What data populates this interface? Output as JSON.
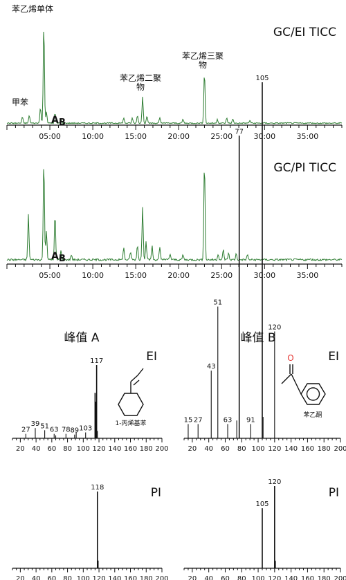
{
  "chromatograms": {
    "time_ticks": [
      "05:00",
      "10:00",
      "15:00",
      "20:00",
      "25:00",
      "30:00",
      "35:00"
    ],
    "peak_labels": {
      "A": "A",
      "B": "B",
      "toluene": "甲苯",
      "monomer": "苯乙烯单体",
      "dimer_line1": "苯乙烯二聚",
      "dimer_line2": "物",
      "trimer_line1": "苯乙烯三聚",
      "trimer_line2": "物"
    },
    "line_color": "#2e7d32"
  },
  "spectra": {
    "header_a": "峰值 A",
    "header_b": "峰值 B",
    "mode_ei": "EI",
    "mode_pi": "PI",
    "mz_ticks": [
      "20",
      "40",
      "60",
      "80",
      "100",
      "120",
      "140",
      "160",
      "180",
      "200"
    ],
    "structure_a_name": "1-丙烯基苯",
    "structure_b_name": "苯乙酮",
    "oxygen_label": "O",
    "oxygen_color": "#e53935"
  },
  "chart_data": [
    {
      "type": "line",
      "title": "GC/EI TICC",
      "xlabel": "",
      "ylabel": "",
      "xlim": [
        "00:00",
        "39:00"
      ],
      "x_ticks": [
        "05:00",
        "10:00",
        "15:00",
        "20:00",
        "25:00",
        "30:00",
        "35:00"
      ],
      "peaks": [
        {
          "t": 1.8,
          "h": 0.06
        },
        {
          "t": 2.6,
          "h": 0.08
        },
        {
          "t": 3.9,
          "h": 0.16,
          "label": "甲苯"
        },
        {
          "t": 4.3,
          "h": 1.0,
          "label": "苯乙烯单体"
        },
        {
          "t": 4.6,
          "h": 0.12
        },
        {
          "t": 5.6,
          "h": 0.1,
          "label": "A"
        },
        {
          "t": 6.3,
          "h": 0.04,
          "label": "B"
        },
        {
          "t": 13.6,
          "h": 0.05
        },
        {
          "t": 14.6,
          "h": 0.05
        },
        {
          "t": 15.2,
          "h": 0.08
        },
        {
          "t": 15.8,
          "h": 0.27,
          "label": "苯乙烯二聚物"
        },
        {
          "t": 16.3,
          "h": 0.07
        },
        {
          "t": 17.8,
          "h": 0.05
        },
        {
          "t": 20.5,
          "h": 0.04
        },
        {
          "t": 23.0,
          "h": 0.52,
          "label": "苯乙烯三聚物"
        },
        {
          "t": 24.5,
          "h": 0.04
        },
        {
          "t": 25.6,
          "h": 0.05
        },
        {
          "t": 26.3,
          "h": 0.04
        },
        {
          "t": 28.3,
          "h": 0.03
        }
      ]
    },
    {
      "type": "line",
      "title": "GC/PI TICC",
      "xlabel": "",
      "ylabel": "",
      "xlim": [
        "00:00",
        "39:00"
      ],
      "x_ticks": [
        "05:00",
        "10:00",
        "15:00",
        "20:00",
        "25:00",
        "30:00",
        "35:00"
      ],
      "peaks": [
        {
          "t": 2.5,
          "h": 0.45
        },
        {
          "t": 4.3,
          "h": 1.0
        },
        {
          "t": 4.6,
          "h": 0.3
        },
        {
          "t": 5.6,
          "h": 0.46,
          "label": "A"
        },
        {
          "t": 6.3,
          "h": 0.1,
          "label": "B"
        },
        {
          "t": 7.5,
          "h": 0.05
        },
        {
          "t": 13.6,
          "h": 0.12
        },
        {
          "t": 14.4,
          "h": 0.08
        },
        {
          "t": 15.2,
          "h": 0.15
        },
        {
          "t": 15.8,
          "h": 0.54
        },
        {
          "t": 16.2,
          "h": 0.18
        },
        {
          "t": 16.9,
          "h": 0.14
        },
        {
          "t": 17.8,
          "h": 0.12
        },
        {
          "t": 19.0,
          "h": 0.06
        },
        {
          "t": 20.5,
          "h": 0.05
        },
        {
          "t": 23.0,
          "h": 1.0
        },
        {
          "t": 24.6,
          "h": 0.06
        },
        {
          "t": 25.2,
          "h": 0.1
        },
        {
          "t": 25.8,
          "h": 0.07
        },
        {
          "t": 26.7,
          "h": 0.06
        },
        {
          "t": 28.0,
          "h": 0.05
        }
      ]
    },
    {
      "type": "bar",
      "title": "峰值 A EI",
      "xlabel": "",
      "ylabel": "",
      "xlim": [
        10,
        200
      ],
      "x_ticks": [
        20,
        40,
        60,
        80,
        100,
        120,
        140,
        160,
        180,
        200
      ],
      "peaks": [
        {
          "mz": 27,
          "h": 0.06,
          "label": "27"
        },
        {
          "mz": 39,
          "h": 0.14,
          "label": "39"
        },
        {
          "mz": 51,
          "h": 0.11,
          "label": "51"
        },
        {
          "mz": 63,
          "h": 0.06,
          "label": "63"
        },
        {
          "mz": 65,
          "h": 0.04
        },
        {
          "mz": 78,
          "h": 0.06,
          "label": "78"
        },
        {
          "mz": 89,
          "h": 0.05,
          "label": "89"
        },
        {
          "mz": 91,
          "h": 0.08
        },
        {
          "mz": 103,
          "h": 0.08,
          "label": "103"
        },
        {
          "mz": 115,
          "h": 0.62
        },
        {
          "mz": 116,
          "h": 0.5
        },
        {
          "mz": 117,
          "h": 1.0,
          "label": "117"
        },
        {
          "mz": 118,
          "h": 0.1
        }
      ]
    },
    {
      "type": "bar",
      "title": "峰值 B EI",
      "xlabel": "",
      "ylabel": "",
      "xlim": [
        10,
        200
      ],
      "x_ticks": [
        20,
        40,
        60,
        80,
        100,
        120,
        140,
        160,
        180,
        200
      ],
      "peaks": [
        {
          "mz": 15,
          "h": 0.04,
          "label": "15"
        },
        {
          "mz": 27,
          "h": 0.04,
          "label": "27"
        },
        {
          "mz": 43,
          "h": 0.19,
          "label": "43"
        },
        {
          "mz": 51,
          "h": 0.37,
          "label": "51"
        },
        {
          "mz": 63,
          "h": 0.04,
          "label": "63"
        },
        {
          "mz": 74,
          "h": 0.05
        },
        {
          "mz": 77,
          "h": 0.85,
          "label": "77"
        },
        {
          "mz": 91,
          "h": 0.04,
          "label": "91"
        },
        {
          "mz": 105,
          "h": 1.0,
          "label": "105"
        },
        {
          "mz": 106,
          "h": 0.06
        },
        {
          "mz": 120,
          "h": 0.3,
          "label": "120"
        }
      ]
    },
    {
      "type": "bar",
      "title": "峰值 A PI",
      "xlabel": "",
      "ylabel": "",
      "xlim": [
        10,
        200
      ],
      "x_ticks": [
        20,
        40,
        60,
        80,
        100,
        120,
        140,
        160,
        180,
        200
      ],
      "peaks": [
        {
          "mz": 118,
          "h": 1.0,
          "label": "118"
        },
        {
          "mz": 119,
          "h": 0.1
        }
      ]
    },
    {
      "type": "bar",
      "title": "峰值 B PI",
      "xlabel": "",
      "ylabel": "",
      "xlim": [
        10,
        200
      ],
      "x_ticks": [
        20,
        40,
        60,
        80,
        100,
        120,
        140,
        160,
        180,
        200
      ],
      "peaks": [
        {
          "mz": 105,
          "h": 0.73,
          "label": "105"
        },
        {
          "mz": 120,
          "h": 1.0,
          "label": "120"
        },
        {
          "mz": 121,
          "h": 0.09
        }
      ]
    }
  ]
}
